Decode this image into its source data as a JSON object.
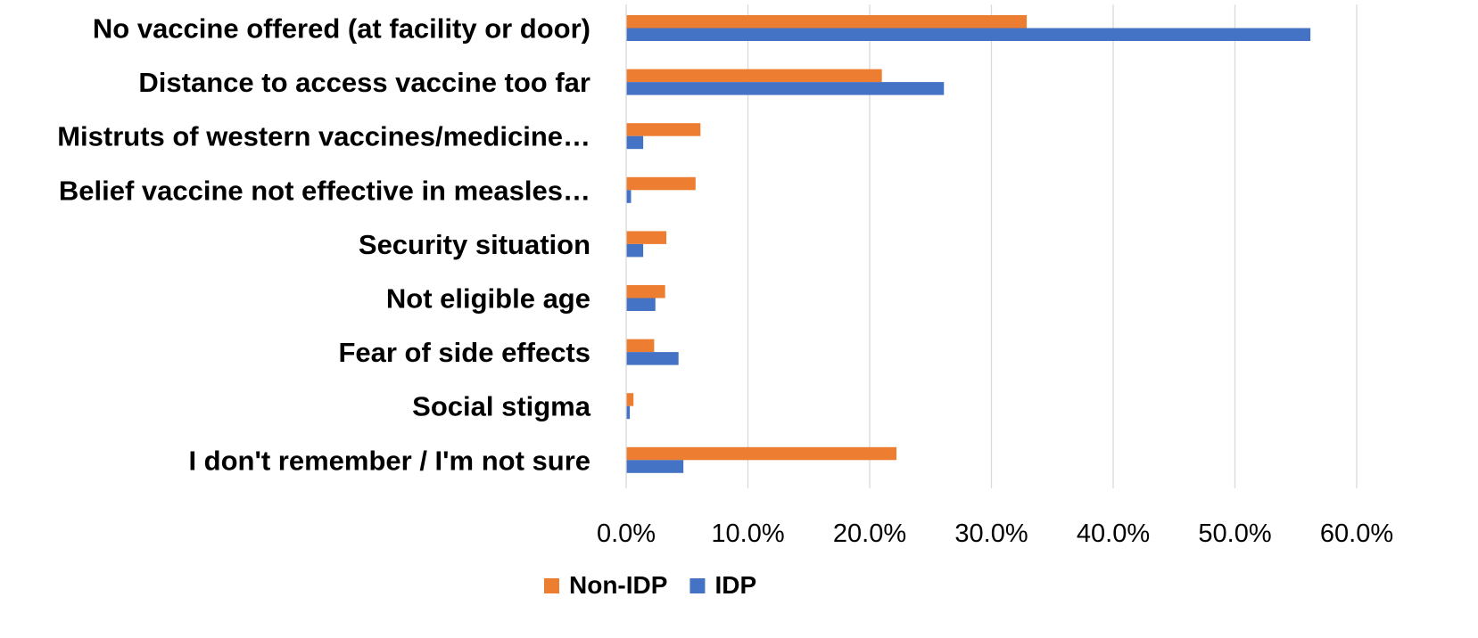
{
  "chart_data": {
    "type": "bar",
    "orientation": "horizontal",
    "title": "",
    "xlabel": "",
    "ylabel": "",
    "categories": [
      "No vaccine offered (at facility or door)",
      "Distance to access vaccine too far",
      "Mistruts of western vaccines/medicine…",
      "Belief vaccine not effective in measles…",
      "Security situation",
      "Not eligible age",
      "Fear of side effects",
      "Social stigma",
      "I don't remember / I'm not sure"
    ],
    "series": [
      {
        "name": "Non-IDP",
        "color": "#ED7D31",
        "values": [
          32.9,
          21.0,
          6.1,
          5.7,
          3.3,
          3.2,
          2.3,
          0.6,
          22.2
        ]
      },
      {
        "name": "IDP",
        "color": "#4472C4",
        "values": [
          56.2,
          26.1,
          1.4,
          0.4,
          1.4,
          2.4,
          4.3,
          0.3,
          4.7
        ]
      }
    ],
    "xlim": [
      0,
      60
    ],
    "xticks": [
      "0.0%",
      "10.0%",
      "20.0%",
      "30.0%",
      "40.0%",
      "50.0%",
      "60.0%"
    ],
    "grid": true,
    "gridline_color": "#D9D9D9",
    "legend_position": "bottom"
  }
}
